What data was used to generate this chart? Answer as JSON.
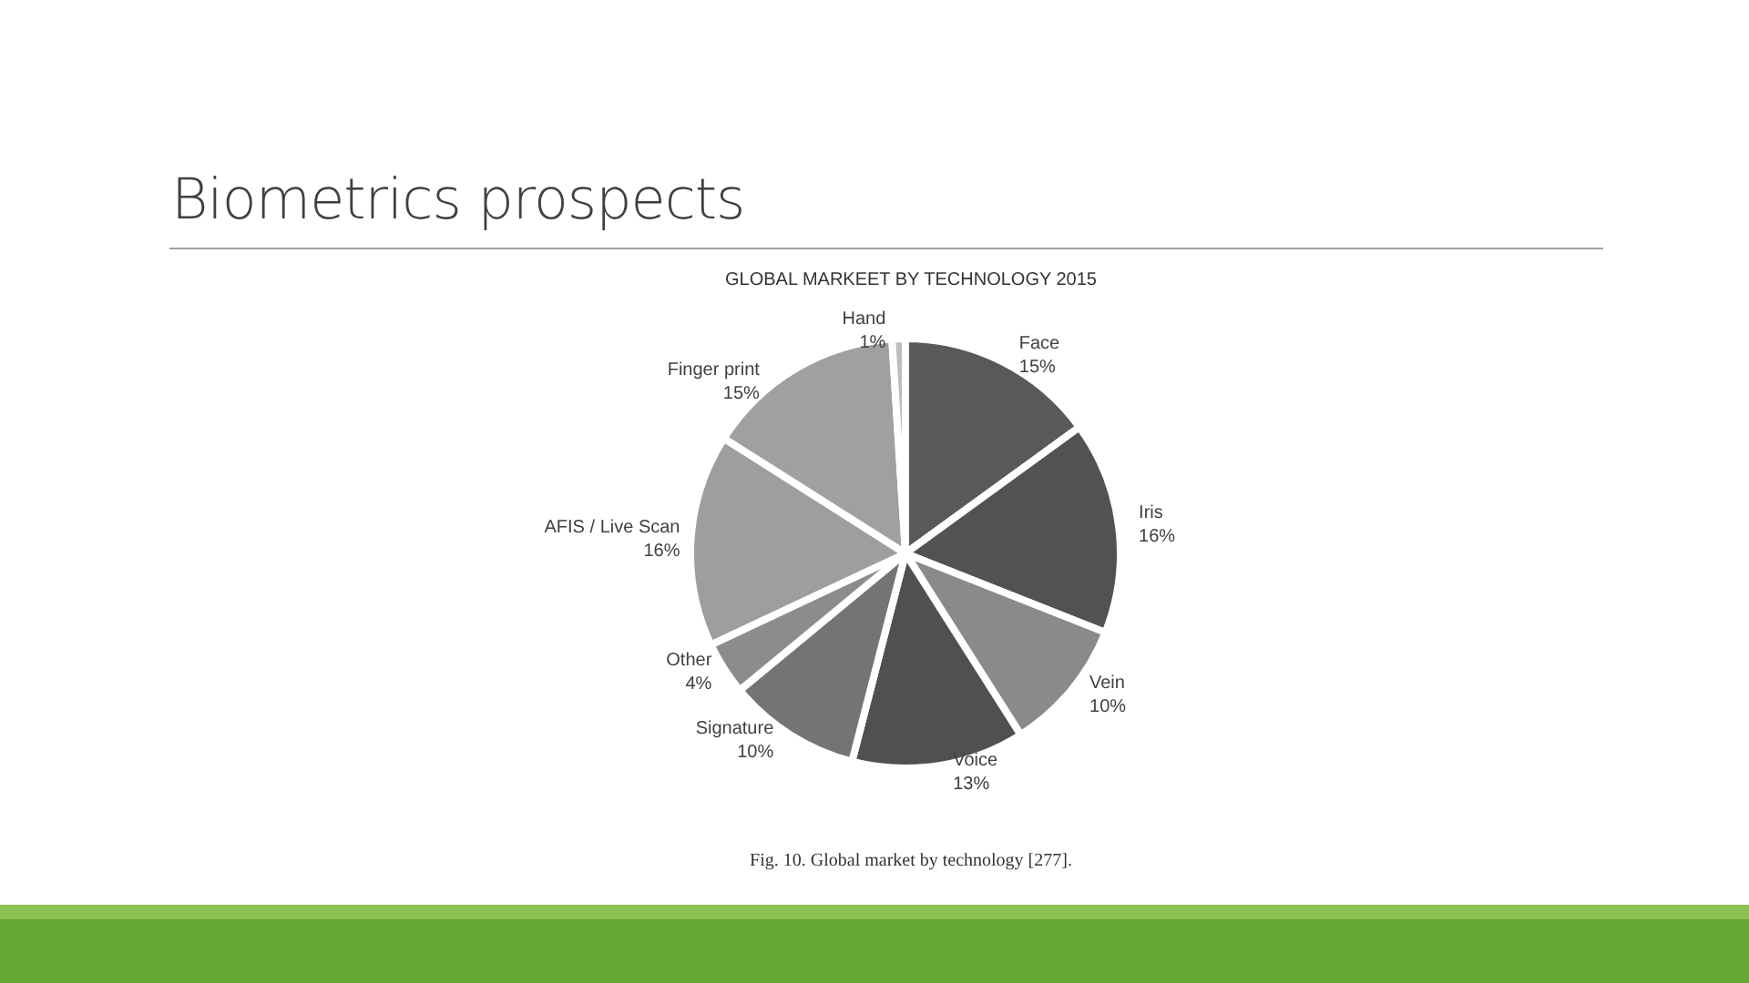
{
  "chart_data": {
    "type": "pie",
    "title": "Biometrics prospects",
    "subtitle": "GLOBAL MARKEET BY TECHNOLOGY 2015",
    "categories": [
      "Face",
      "Iris",
      "Vein",
      "Voice",
      "Signature",
      "Other",
      "AFIS / Live Scan",
      "Finger print",
      "Hand"
    ],
    "values": [
      15,
      16,
      10,
      13,
      10,
      4,
      16,
      15,
      1
    ],
    "value_labels": [
      "15%",
      "16%",
      "10%",
      "13%",
      "10%",
      "4%",
      "16%",
      "15%",
      "1%"
    ],
    "colors": [
      "#595959",
      "#525252",
      "#8a8a8a",
      "#505050",
      "#747474",
      "#8c8c8c",
      "#9e9e9e",
      "#a0a0a0",
      "#bdbdbd"
    ],
    "annotations": [
      "Fig. 10. Global market by technology [277]."
    ]
  }
}
